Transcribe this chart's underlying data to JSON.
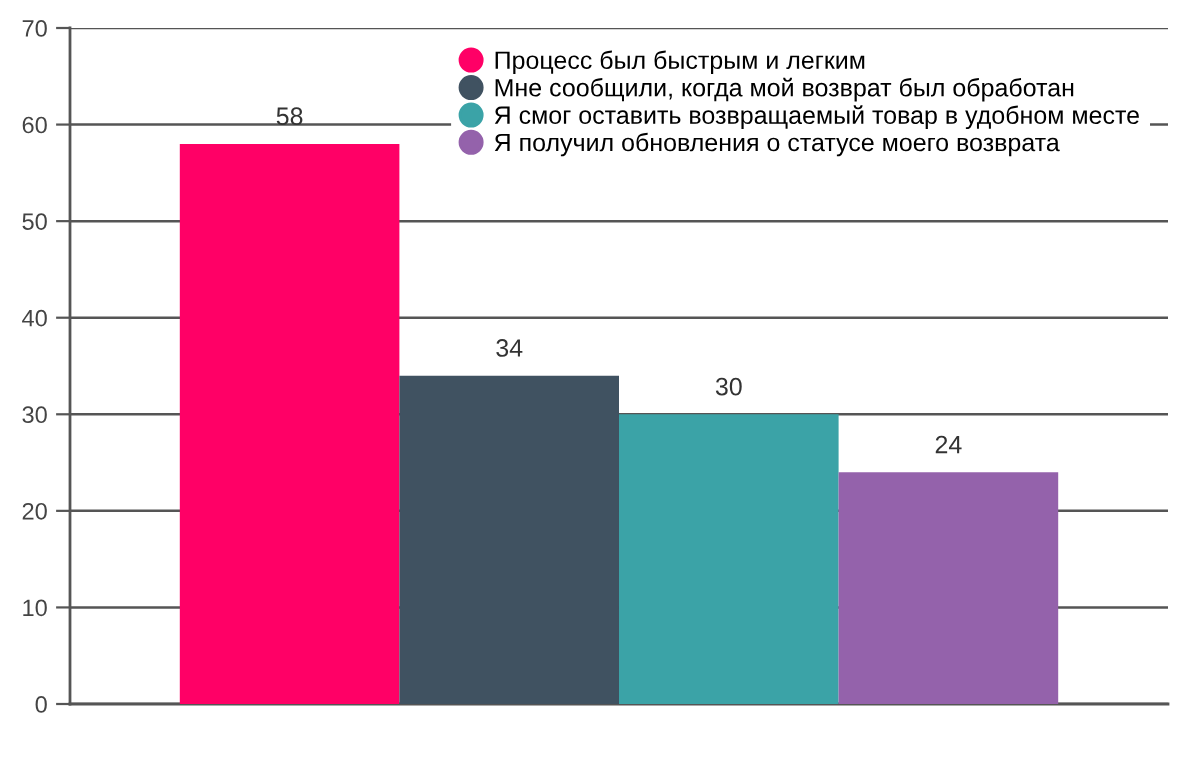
{
  "chart_data": {
    "type": "bar",
    "categories": [
      null
    ],
    "series": [
      {
        "name": "Процесс был быстрым и легким",
        "color": "#ff0066",
        "values": [
          58
        ]
      },
      {
        "name": "Мне сообщили, когда мой возврат был обработан",
        "color": "#405261",
        "values": [
          34
        ]
      },
      {
        "name": "Я смог оставить возвращаемый товар в удобном месте",
        "color": "#3ba3a7",
        "values": [
          30
        ]
      },
      {
        "name": "Я получил обновления о статусе моего возврата",
        "color": "#9462ab",
        "values": [
          24
        ]
      }
    ],
    "ylim": [
      0,
      70
    ],
    "yticks": [
      0,
      10,
      20,
      30,
      40,
      50,
      60,
      70
    ],
    "grid": "y",
    "legend": "top right",
    "marker": "circle",
    "data_labels": true
  }
}
